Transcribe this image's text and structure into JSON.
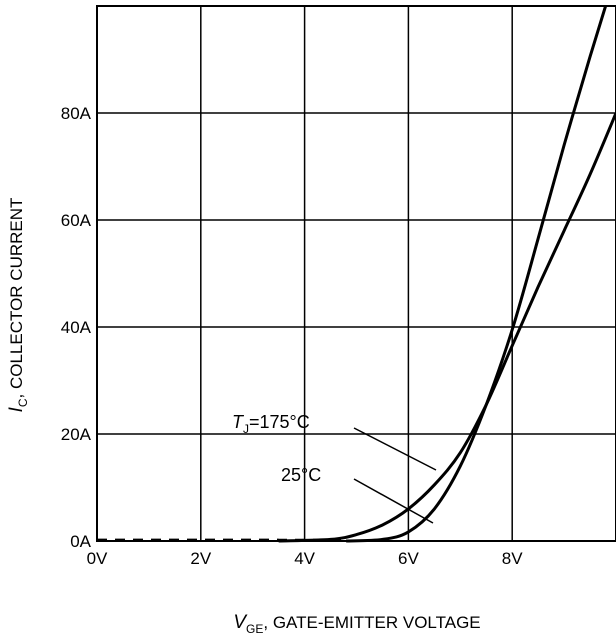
{
  "chart_data": {
    "type": "line",
    "xlim": [
      0,
      10
    ],
    "ylim": [
      0,
      100
    ],
    "grid": true,
    "x_ticks": [
      {
        "value": 0,
        "label": "0V"
      },
      {
        "value": 2,
        "label": "2V"
      },
      {
        "value": 4,
        "label": "4V"
      },
      {
        "value": 6,
        "label": "6V"
      },
      {
        "value": 8,
        "label": "8V"
      }
    ],
    "y_ticks": [
      {
        "value": 0,
        "label": "0A"
      },
      {
        "value": 20,
        "label": "20A"
      },
      {
        "value": 40,
        "label": "40A"
      },
      {
        "value": 60,
        "label": "60A"
      },
      {
        "value": 80,
        "label": "80A"
      }
    ],
    "xlabel": {
      "symbol": "V",
      "subscript": "GE",
      "text": ", GATE-EMITTER VOLTAGE"
    },
    "ylabel": {
      "symbol": "I",
      "subscript": "C",
      "text": ", COLLECTOR CURRENT"
    },
    "series": [
      {
        "name": "TJ=175°C",
        "x": [
          0,
          3.5,
          4.5,
          5.0,
          5.5,
          6.0,
          6.5,
          7.0,
          7.5,
          8.0,
          8.5,
          9.0,
          9.5,
          10.0
        ],
        "y": [
          0,
          0,
          0.3,
          1.2,
          3.0,
          6.0,
          10.5,
          16.5,
          25.5,
          36.5,
          47.5,
          58.0,
          68.5,
          80.0
        ]
      },
      {
        "name": "25°C",
        "x": [
          0,
          4.8,
          5.5,
          6.0,
          6.5,
          7.0,
          7.5,
          8.0,
          8.5,
          9.0,
          9.5,
          9.8
        ],
        "y": [
          0,
          0,
          0.3,
          1.7,
          6.0,
          14.0,
          25.5,
          39.5,
          56.5,
          74.0,
          90.5,
          100.0
        ]
      }
    ],
    "annotations": [
      {
        "main": "T",
        "sub": "J",
        "rest": "=175°C"
      },
      {
        "text": "25°C"
      }
    ]
  }
}
